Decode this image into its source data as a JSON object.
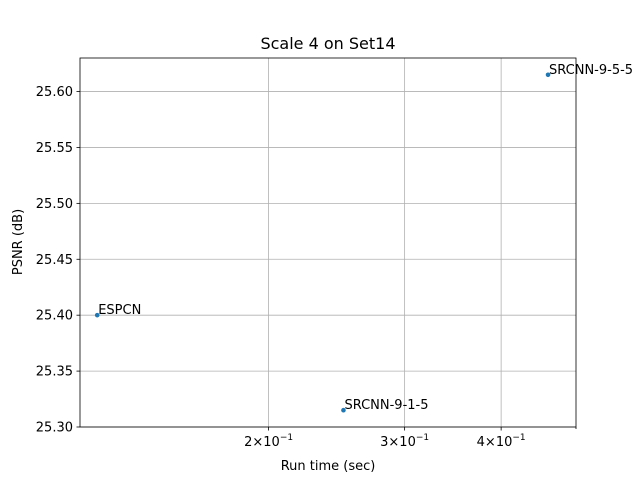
{
  "chart_data": {
    "type": "scatter",
    "title": "Scale 4 on Set14",
    "xlabel": "Run time (sec)",
    "ylabel": "PSNR (dB)",
    "xscale": "log",
    "xlim": [
      0.114,
      0.5
    ],
    "ylim": [
      25.3,
      25.63
    ],
    "grid": true,
    "color": "#1f77b4",
    "x_ticks": [
      {
        "value": 0.2,
        "mantissa": "2",
        "base": "10",
        "exponent": "−1"
      },
      {
        "value": 0.3,
        "mantissa": "3",
        "base": "10",
        "exponent": "−1"
      },
      {
        "value": 0.4,
        "mantissa": "4",
        "base": "10",
        "exponent": "−1"
      }
    ],
    "x_minor_ticks": [
      0.5
    ],
    "y_ticks": [
      "25.30",
      "25.35",
      "25.40",
      "25.45",
      "25.50",
      "25.55",
      "25.60"
    ],
    "points": [
      {
        "label": "ESPCN",
        "x": 0.12,
        "y": 25.4
      },
      {
        "label": "SRCNN-9-1-5",
        "x": 0.25,
        "y": 25.315
      },
      {
        "label": "SRCNN-9-5-5",
        "x": 0.46,
        "y": 25.615
      }
    ]
  }
}
